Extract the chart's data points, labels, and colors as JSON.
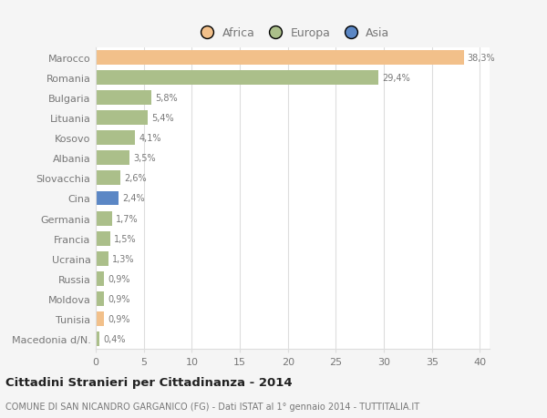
{
  "countries": [
    "Marocco",
    "Romania",
    "Bulgaria",
    "Lituania",
    "Kosovo",
    "Albania",
    "Slovacchia",
    "Cina",
    "Germania",
    "Francia",
    "Ucraina",
    "Russia",
    "Moldova",
    "Tunisia",
    "Macedonia d/N."
  ],
  "values": [
    38.3,
    29.4,
    5.8,
    5.4,
    4.1,
    3.5,
    2.6,
    2.4,
    1.7,
    1.5,
    1.3,
    0.9,
    0.9,
    0.9,
    0.4
  ],
  "labels": [
    "38,3%",
    "29,4%",
    "5,8%",
    "5,4%",
    "4,1%",
    "3,5%",
    "2,6%",
    "2,4%",
    "1,7%",
    "1,5%",
    "1,3%",
    "0,9%",
    "0,9%",
    "0,9%",
    "0,4%"
  ],
  "colors": [
    "#F2C08A",
    "#ABBF8A",
    "#ABBF8A",
    "#ABBF8A",
    "#ABBF8A",
    "#ABBF8A",
    "#ABBF8A",
    "#5B87C5",
    "#ABBF8A",
    "#ABBF8A",
    "#ABBF8A",
    "#ABBF8A",
    "#ABBF8A",
    "#F2C08A",
    "#ABBF8A"
  ],
  "legend_labels": [
    "Africa",
    "Europa",
    "Asia"
  ],
  "legend_colors": [
    "#F2C08A",
    "#ABBF8A",
    "#5B87C5"
  ],
  "xlim": [
    0,
    41
  ],
  "xticks": [
    0,
    5,
    10,
    15,
    20,
    25,
    30,
    35,
    40
  ],
  "title": "Cittadini Stranieri per Cittadinanza - 2014",
  "subtitle": "COMUNE DI SAN NICANDRO GARGANICO (FG) - Dati ISTAT al 1° gennaio 2014 - TUTTITALIA.IT",
  "bg_color": "#F5F5F5",
  "plot_bg_color": "#FFFFFF",
  "grid_color": "#DDDDDD",
  "text_color": "#777777",
  "title_color": "#222222",
  "subtitle_color": "#777777",
  "bar_height": 0.72
}
